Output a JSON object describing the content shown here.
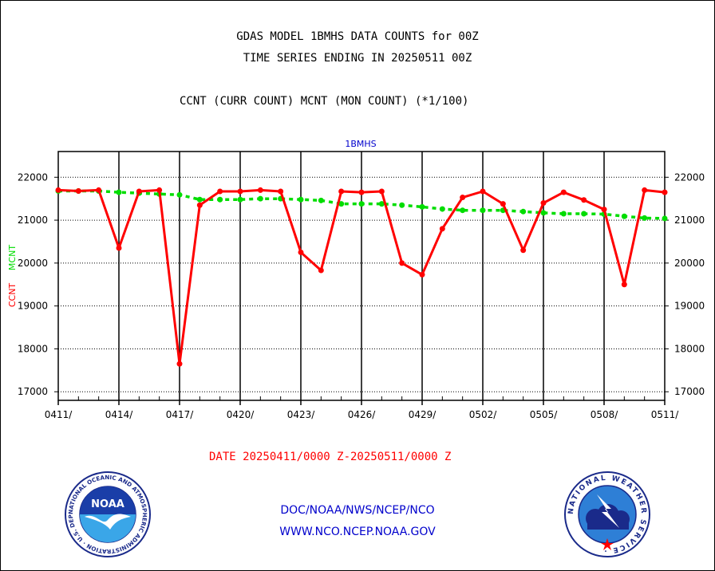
{
  "page": {
    "title_line1": "GDAS MODEL 1BMHS DATA COUNTS for 00Z",
    "title_line2": "TIME SERIES ENDING IN 20250511 00Z",
    "subtitle": "CCNT (CURR COUNT) MCNT (MON COUNT) (*1/100)",
    "date_range": "DATE 20250411/0000 Z-20250511/0000 Z",
    "footer_line1": "DOC/NOAA/NWS/NCEP/NCO",
    "footer_line2": "WWW.NCO.NCEP.NOAA.GOV",
    "noaa_logo_text": "NOAA",
    "noaa_ring_text": "NATIONAL OCEANIC AND ATMOSPHERIC ADMINISTRATION · U.S. DEPARTMENT OF COMMERCE ·",
    "nws_ring_text": "NATIONAL WEATHER SERVICE ·"
  },
  "colors": {
    "ccnt": "#ff0000",
    "mcnt": "#00dd00",
    "panel_title": "#0000cc",
    "date_range": "#ff0000",
    "footer": "#0000cc"
  },
  "chart_data": {
    "type": "line",
    "title": "1BMHS",
    "ylabel_ccnt": "CCNT",
    "ylabel_mcnt": "MCNT",
    "ylim": [
      16800,
      22600
    ],
    "yticks": [
      17000,
      18000,
      19000,
      20000,
      21000,
      22000
    ],
    "x_tick_labels": [
      "0411/",
      "0414/",
      "0417/",
      "0420/",
      "0423/",
      "0426/",
      "0429/",
      "0502/",
      "0505/",
      "0508/",
      "0511/"
    ],
    "grid": true,
    "series": [
      {
        "name": "CCNT",
        "values": [
          21700,
          21680,
          21700,
          20350,
          21670,
          21700,
          17650,
          21350,
          21670,
          21670,
          21700,
          21670,
          20250,
          19830,
          21670,
          21650,
          21670,
          20000,
          19730,
          20800,
          21530,
          21670,
          21380,
          20300,
          21400,
          21650,
          21470,
          21250,
          19500,
          21700,
          21650
        ]
      },
      {
        "name": "MCNT",
        "values": [
          21680,
          21680,
          21680,
          21650,
          21630,
          21610,
          21590,
          21480,
          21480,
          21480,
          21500,
          21500,
          21480,
          21460,
          21380,
          21380,
          21380,
          21350,
          21310,
          21260,
          21230,
          21230,
          21230,
          21200,
          21170,
          21150,
          21150,
          21140,
          21090,
          21050,
          21040
        ]
      }
    ]
  }
}
